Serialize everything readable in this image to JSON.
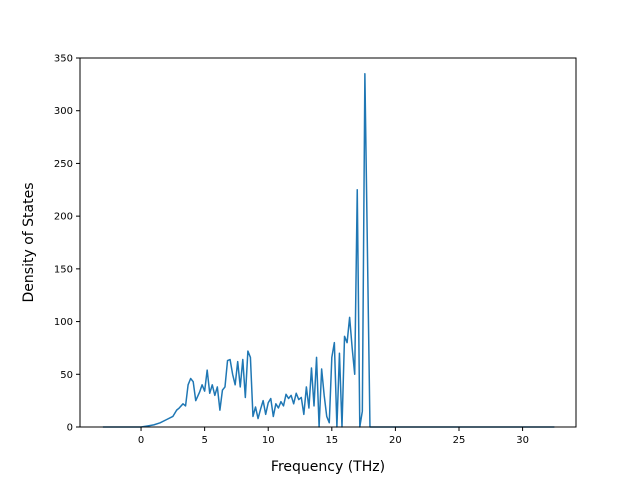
{
  "chart_data": {
    "type": "line",
    "title": "",
    "xlabel": "Frequency (THz)",
    "ylabel": "Density of States",
    "xlim": [
      -4.8,
      34.2
    ],
    "ylim": [
      0,
      350
    ],
    "xticks": [
      0,
      5,
      10,
      15,
      20,
      25,
      30
    ],
    "yticks": [
      0,
      50,
      100,
      150,
      200,
      250,
      300,
      350
    ],
    "grid": false,
    "series": [
      {
        "color": "#1f77b4",
        "x": [
          -3.0,
          -1.0,
          0.0,
          0.5,
          1.0,
          1.5,
          2.0,
          2.5,
          2.8,
          3.0,
          3.3,
          3.5,
          3.7,
          3.9,
          4.1,
          4.3,
          4.6,
          4.8,
          5.0,
          5.2,
          5.4,
          5.6,
          5.8,
          6.0,
          6.2,
          6.4,
          6.6,
          6.8,
          7.0,
          7.2,
          7.4,
          7.6,
          7.8,
          8.0,
          8.2,
          8.4,
          8.6,
          8.8,
          9.0,
          9.2,
          9.4,
          9.6,
          9.8,
          10.0,
          10.2,
          10.4,
          10.6,
          10.8,
          11.0,
          11.2,
          11.4,
          11.6,
          11.8,
          12.0,
          12.2,
          12.4,
          12.6,
          12.8,
          13.0,
          13.2,
          13.4,
          13.6,
          13.8,
          14.0,
          14.2,
          14.4,
          14.6,
          14.8,
          15.0,
          15.2,
          15.4,
          15.6,
          15.8,
          16.0,
          16.2,
          16.4,
          16.6,
          16.8,
          17.0,
          17.2,
          17.4,
          17.6,
          18.0,
          20.0,
          25.0,
          30.0,
          32.5
        ],
        "y": [
          0,
          0,
          0,
          1,
          2,
          4,
          7,
          10,
          16,
          18,
          22,
          20,
          40,
          46,
          43,
          25,
          33,
          40,
          34,
          54,
          32,
          40,
          30,
          38,
          16,
          35,
          38,
          63,
          64,
          50,
          40,
          62,
          38,
          64,
          28,
          72,
          66,
          10,
          19,
          8,
          17,
          25,
          12,
          23,
          27,
          10,
          22,
          18,
          24,
          20,
          31,
          27,
          30,
          22,
          32,
          26,
          28,
          12,
          38,
          18,
          56,
          20,
          66,
          0,
          55,
          30,
          10,
          4,
          66,
          80,
          0,
          70,
          0,
          86,
          80,
          104,
          75,
          50,
          225,
          0,
          15,
          335,
          0,
          0,
          0,
          0,
          0
        ]
      }
    ]
  }
}
